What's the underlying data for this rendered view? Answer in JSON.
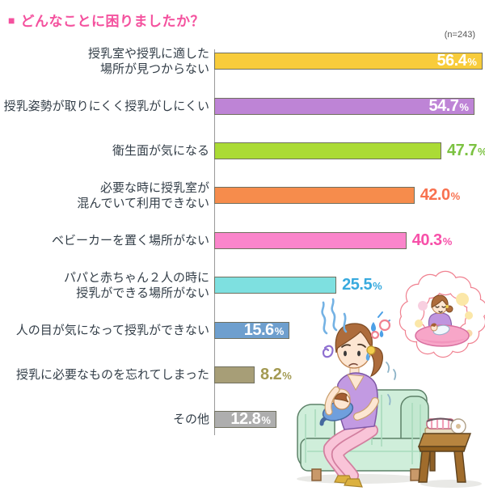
{
  "header": {
    "title_bullet": "■",
    "title": "どんなことに困りましたか？",
    "title_color": "#f4519e",
    "sample_size": "(n=243)"
  },
  "chart_data": {
    "type": "bar",
    "orientation": "horizontal",
    "title": "どんなことに困りましたか？",
    "sample_size_label": "(n=243)",
    "n": 243,
    "unit": "%",
    "xlim": [
      0,
      60
    ],
    "grid": false,
    "legend": "none",
    "categories": [
      "授乳室や授乳に適した場所が見つからない",
      "授乳姿勢が取りにくく授乳がしにくい",
      "衛生面が気になる",
      "必要な時に授乳室が混んでいて利用できない",
      "ベビーカーを置く場所がない",
      "パパと赤ちゃん２人の時に授乳ができる場所がない",
      "人の目が気になって授乳ができない",
      "授乳に必要なものを忘れてしまった",
      "その他"
    ],
    "values": [
      56.4,
      54.7,
      47.7,
      42.0,
      40.3,
      25.5,
      15.6,
      8.2,
      12.8
    ],
    "bars": [
      {
        "label_lines": [
          "授乳室や授乳に適した",
          "場所が見つからない"
        ],
        "value": 56.4,
        "display": "56.4",
        "bar_color": "#f8cc3b",
        "value_position": "inside",
        "value_color": "#ffffff"
      },
      {
        "label_lines": [
          "授乳姿勢が取りにくく授乳がしにくい"
        ],
        "value": 54.7,
        "display": "54.7",
        "bar_color": "#be84d6",
        "value_position": "inside",
        "value_color": "#ffffff"
      },
      {
        "label_lines": [
          "衛生面が気になる"
        ],
        "value": 47.7,
        "display": "47.7",
        "bar_color": "#abdb35",
        "value_position": "outside",
        "value_color": "#7cc242"
      },
      {
        "label_lines": [
          "必要な時に授乳室が",
          "混んでいて利用できない"
        ],
        "value": 42.0,
        "display": "42.0",
        "bar_color": "#f68c4c",
        "value_position": "outside",
        "value_color": "#f8714f"
      },
      {
        "label_lines": [
          "ベビーカーを置く場所がない"
        ],
        "value": 40.3,
        "display": "40.3",
        "bar_color": "#fa85cb",
        "value_position": "outside",
        "value_color": "#f750a9"
      },
      {
        "label_lines": [
          "パパと赤ちゃん２人の時に",
          "授乳ができる場所がない"
        ],
        "value": 25.5,
        "display": "25.5",
        "bar_color": "#7ee0e0",
        "value_position": "outside",
        "value_color": "#38aade"
      },
      {
        "label_lines": [
          "人の目が気になって授乳ができない"
        ],
        "value": 15.6,
        "display": "15.6",
        "bar_color": "#6e9fce",
        "value_position": "inside",
        "value_color": "#ffffff"
      },
      {
        "label_lines": [
          "授乳に必要なものを忘れてしまった"
        ],
        "value": 8.2,
        "display": "8.2",
        "bar_color": "#a79e77",
        "value_position": "outside",
        "value_color": "#a39a52"
      },
      {
        "label_lines": [
          "その他"
        ],
        "value": 12.8,
        "display": "12.8",
        "bar_color": "#aeaeae",
        "value_position": "inside",
        "value_color": "#ffffff"
      }
    ]
  },
  "illustration": {
    "alt": "worried-mother-breastfeeding-on-sofa-dreaming-of-relaxed-feeding-on-cushion"
  }
}
